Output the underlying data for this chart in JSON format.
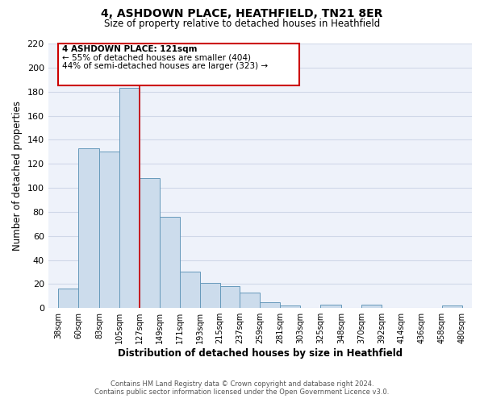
{
  "title": "4, ASHDOWN PLACE, HEATHFIELD, TN21 8ER",
  "subtitle": "Size of property relative to detached houses in Heathfield",
  "xlabel": "Distribution of detached houses by size in Heathfield",
  "ylabel": "Number of detached properties",
  "bar_color": "#ccdcec",
  "bar_edge_color": "#6699bb",
  "bar_left_edges": [
    38,
    60,
    83,
    105,
    127,
    149,
    171,
    193,
    215,
    237,
    259,
    281,
    303,
    325,
    348,
    370,
    392,
    414,
    436,
    458
  ],
  "bar_widths": [
    22,
    23,
    22,
    22,
    22,
    22,
    22,
    22,
    22,
    22,
    22,
    22,
    22,
    23,
    22,
    22,
    22,
    22,
    22,
    22
  ],
  "bar_heights": [
    16,
    133,
    130,
    183,
    108,
    76,
    30,
    21,
    18,
    13,
    5,
    2,
    0,
    3,
    0,
    3,
    0,
    0,
    0,
    2
  ],
  "tick_labels": [
    "38sqm",
    "60sqm",
    "83sqm",
    "105sqm",
    "127sqm",
    "149sqm",
    "171sqm",
    "193sqm",
    "215sqm",
    "237sqm",
    "259sqm",
    "281sqm",
    "303sqm",
    "325sqm",
    "348sqm",
    "370sqm",
    "392sqm",
    "414sqm",
    "436sqm",
    "458sqm",
    "480sqm"
  ],
  "tick_positions": [
    38,
    60,
    83,
    105,
    127,
    149,
    171,
    193,
    215,
    237,
    259,
    281,
    303,
    325,
    348,
    370,
    392,
    414,
    436,
    458,
    480
  ],
  "ylim": [
    0,
    220
  ],
  "xlim": [
    27,
    491
  ],
  "vline_x": 127,
  "vline_color": "#cc0000",
  "annotation_title": "4 ASHDOWN PLACE: 121sqm",
  "annotation_line1": "← 55% of detached houses are smaller (404)",
  "annotation_line2": "44% of semi-detached houses are larger (323) →",
  "annotation_box_color": "#cc0000",
  "footer_line1": "Contains HM Land Registry data © Crown copyright and database right 2024.",
  "footer_line2": "Contains public sector information licensed under the Open Government Licence v3.0.",
  "grid_color": "#d0d8e8",
  "background_color": "#eef2fa",
  "yticks": [
    0,
    20,
    40,
    60,
    80,
    100,
    120,
    140,
    160,
    180,
    200,
    220
  ]
}
